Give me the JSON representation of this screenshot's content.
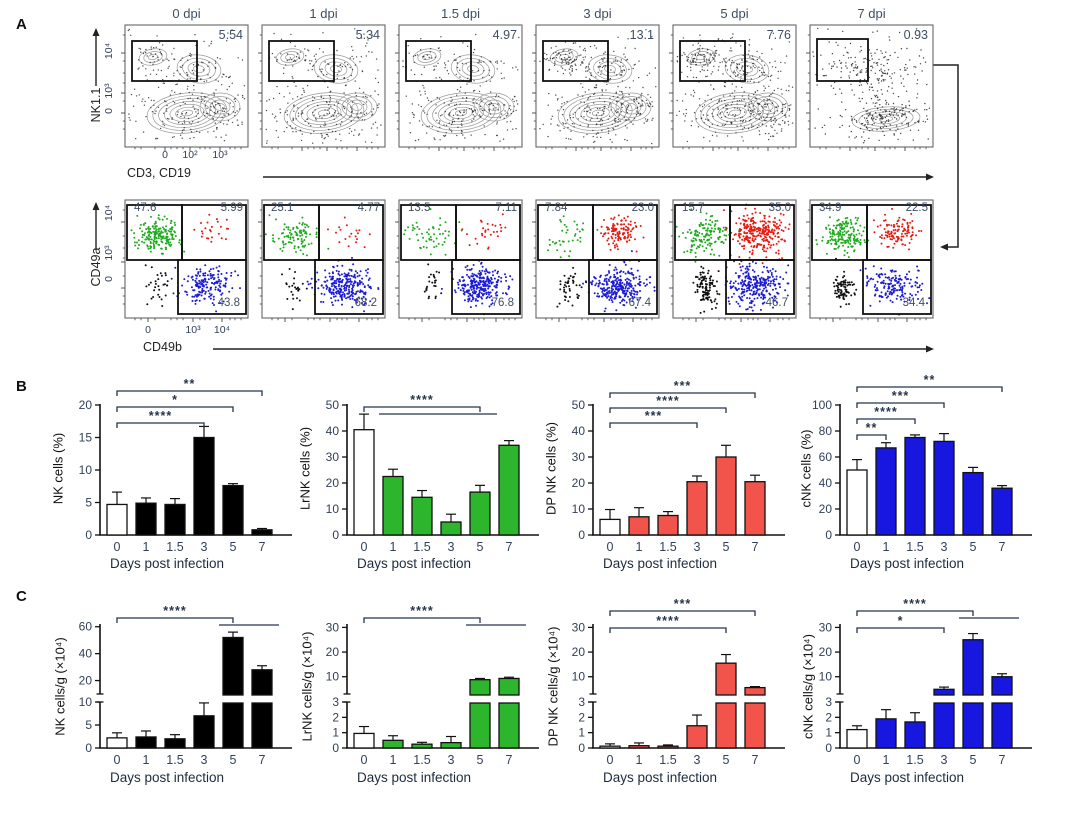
{
  "panel_labels": {
    "A": "A",
    "B": "B",
    "C": "C"
  },
  "colors": {
    "bar_black": "#000000",
    "bar_green": "#2db52d",
    "bar_red": "#f2544b",
    "bar_blue": "#1717e0",
    "open_bar": "#ffffff",
    "scatter_green": "#1faa1f",
    "scatter_red": "#e8190f",
    "scatter_blue": "#1b1bd6",
    "scatter_black": "#111111",
    "annotation": "#26344a",
    "tick_text": "#32405a",
    "flow_text": "#3d4e63"
  },
  "panels": {
    "A": {
      "timepoints": [
        "0 dpi",
        "1 dpi",
        "1.5 dpi",
        "3 dpi",
        "5 dpi",
        "7 dpi"
      ],
      "top_row": {
        "y_axis": "NK1.1",
        "y_ticks": [
          "10⁴",
          "10³",
          "0"
        ],
        "x_axis": "CD3, CD19",
        "x_ticks": [
          "0",
          "10²",
          "10³"
        ],
        "gate_percent": [
          "5.54",
          "5.34",
          "4.97",
          "13.1",
          "7.76",
          "0.93"
        ]
      },
      "bottom_row": {
        "y_axis": "CD49a",
        "y_ticks": [
          "10⁴",
          "10³",
          "0"
        ],
        "x_axis": "CD49b",
        "x_ticks": [
          "0",
          "10³",
          "10⁴"
        ],
        "quadrant_percent": [
          {
            "tl": "47.6",
            "tr": "5.99",
            "br": "43.8"
          },
          {
            "tl": "25.1",
            "tr": "4.77",
            "br": "68.2"
          },
          {
            "tl": "13.5",
            "tr": "7.11",
            "br": "76.8"
          },
          {
            "tl": "7.84",
            "tr": "23.0",
            "br": "67.4"
          },
          {
            "tl": "15.7",
            "tr": "35.0",
            "br": "46.7"
          },
          {
            "tl": "34.9",
            "tr": "22.5",
            "br": "34.4"
          }
        ]
      }
    },
    "B": {
      "xlabel": "Days post infection"
    },
    "C": {
      "xlabel": "Days post infection"
    }
  },
  "chart_data": [
    {
      "id": "B1",
      "panel": "B",
      "col": 0,
      "type": "bar",
      "ylabel": "NK cells (%)",
      "xlabel": "Days post infection",
      "categories": [
        "0",
        "1",
        "1.5",
        "3",
        "5",
        "7"
      ],
      "values": [
        4.7,
        4.9,
        4.7,
        15.0,
        7.6,
        0.8
      ],
      "errors": [
        1.9,
        0.8,
        0.9,
        1.7,
        0.3,
        0.2
      ],
      "ylim": [
        0,
        20
      ],
      "yticks": [
        0,
        5,
        10,
        15,
        20
      ],
      "bar_color": "#000000",
      "first_bar_open": true,
      "significance": [
        {
          "label": "****",
          "a": 0,
          "b": 3
        },
        {
          "label": "*",
          "a": 0,
          "b": 4
        },
        {
          "label": "**",
          "a": 0,
          "b": 5
        }
      ]
    },
    {
      "id": "B2",
      "panel": "B",
      "col": 1,
      "type": "bar",
      "ylabel": "LrNK cells (%)",
      "xlabel": "Days post infection",
      "categories": [
        "0",
        "1",
        "1.5",
        "3",
        "5",
        "7"
      ],
      "values": [
        40.5,
        22.5,
        14.5,
        5.0,
        16.5,
        34.5
      ],
      "errors": [
        6.0,
        2.8,
        2.6,
        3.0,
        2.6,
        1.8
      ],
      "ylim": [
        0,
        50
      ],
      "yticks": [
        0,
        10,
        20,
        30,
        40,
        50
      ],
      "bar_color": "#2db52d",
      "first_bar_open": true,
      "significance": [
        {
          "label": "****",
          "a": 0,
          "b": 4,
          "sub": [
            1,
            4
          ]
        }
      ]
    },
    {
      "id": "B3",
      "panel": "B",
      "col": 2,
      "type": "bar",
      "ylabel": "DP NK cells (%)",
      "xlabel": "Days post infection",
      "categories": [
        "0",
        "1",
        "1.5",
        "3",
        "5",
        "7"
      ],
      "values": [
        6.0,
        7.0,
        7.5,
        20.5,
        30.0,
        20.5
      ],
      "errors": [
        3.8,
        3.5,
        1.5,
        2.2,
        4.5,
        2.5
      ],
      "ylim": [
        0,
        50
      ],
      "yticks": [
        0,
        10,
        20,
        30,
        40,
        50
      ],
      "bar_color": "#f2544b",
      "first_bar_open": true,
      "significance": [
        {
          "label": "***",
          "a": 0,
          "b": 3
        },
        {
          "label": "****",
          "a": 0,
          "b": 4
        },
        {
          "label": "***",
          "a": 0,
          "b": 5
        }
      ]
    },
    {
      "id": "B4",
      "panel": "B",
      "col": 3,
      "type": "bar",
      "ylabel": "cNK cells (%)",
      "xlabel": "Days post infection",
      "categories": [
        "0",
        "1",
        "1.5",
        "3",
        "5",
        "7"
      ],
      "values": [
        50,
        67,
        75,
        72,
        48,
        36
      ],
      "errors": [
        8,
        4,
        2,
        6,
        4,
        2
      ],
      "ylim": [
        0,
        100
      ],
      "yticks": [
        0,
        20,
        40,
        60,
        80,
        100
      ],
      "bar_color": "#1717e0",
      "first_bar_open": true,
      "significance": [
        {
          "label": "**",
          "a": 0,
          "b": 1
        },
        {
          "label": "****",
          "a": 0,
          "b": 2
        },
        {
          "label": "***",
          "a": 0,
          "b": 3
        },
        {
          "label": "**",
          "a": 0,
          "b": 5
        }
      ]
    },
    {
      "id": "C1",
      "panel": "C",
      "col": 0,
      "type": "bar",
      "ylabel": "NK cells/g (×10⁴)",
      "xlabel": "Days post infection",
      "categories": [
        "0",
        "1",
        "1.5",
        "3",
        "5",
        "7"
      ],
      "values": [
        2.2,
        2.4,
        2.0,
        7.0,
        52,
        28
      ],
      "errors": [
        1.1,
        1.3,
        0.9,
        2.8,
        4,
        3
      ],
      "broken_axis": {
        "lower": [
          0,
          10
        ],
        "lower_ticks": [
          0,
          5,
          10
        ],
        "upper": [
          10,
          65
        ],
        "upper_ticks": [
          20,
          40,
          60
        ]
      },
      "bar_color": "#000000",
      "first_bar_open": true,
      "significance": [
        {
          "label": "****",
          "a": 0,
          "b": 4,
          "sub": [
            4,
            5
          ]
        }
      ]
    },
    {
      "id": "C2",
      "panel": "C",
      "col": 1,
      "type": "bar",
      "ylabel": "LrNK cells/g (×10⁴)",
      "xlabel": "Days post infection",
      "categories": [
        "0",
        "1",
        "1.5",
        "3",
        "5",
        "7"
      ],
      "values": [
        0.95,
        0.5,
        0.25,
        0.35,
        8.8,
        9.3
      ],
      "errors": [
        0.45,
        0.3,
        0.12,
        0.4,
        0.5,
        0.5
      ],
      "broken_axis": {
        "lower": [
          0,
          3
        ],
        "lower_ticks": [
          0,
          1,
          2,
          3
        ],
        "upper": [
          3,
          33
        ],
        "upper_ticks": [
          10,
          20,
          30
        ]
      },
      "bar_color": "#2db52d",
      "first_bar_open": true,
      "significance": [
        {
          "label": "****",
          "a": 0,
          "b": 4,
          "sub": [
            4,
            5
          ]
        }
      ]
    },
    {
      "id": "C3",
      "panel": "C",
      "col": 2,
      "type": "bar",
      "ylabel": "DP NK cells/g (×10⁴)",
      "xlabel": "Days post infection",
      "categories": [
        "0",
        "1",
        "1.5",
        "3",
        "5",
        "7"
      ],
      "values": [
        0.12,
        0.15,
        0.12,
        1.45,
        15.5,
        5.6
      ],
      "errors": [
        0.15,
        0.18,
        0.08,
        0.7,
        3.5,
        0.4
      ],
      "broken_axis": {
        "lower": [
          0,
          3
        ],
        "lower_ticks": [
          0,
          1,
          2,
          3
        ],
        "upper": [
          3,
          33
        ],
        "upper_ticks": [
          10,
          20,
          30
        ]
      },
      "bar_color": "#f2544b",
      "first_bar_open": true,
      "significance": [
        {
          "label": "****",
          "a": 0,
          "b": 4
        },
        {
          "label": "***",
          "a": 0,
          "b": 5
        }
      ]
    },
    {
      "id": "C4",
      "panel": "C",
      "col": 3,
      "type": "bar",
      "ylabel": "cNK cells/g (×10⁴)",
      "xlabel": "Days post infection",
      "categories": [
        "0",
        "1",
        "1.5",
        "3",
        "5",
        "7"
      ],
      "values": [
        1.2,
        1.9,
        1.7,
        4.9,
        25,
        10
      ],
      "errors": [
        0.25,
        0.6,
        0.6,
        0.9,
        2.5,
        1.2
      ],
      "broken_axis": {
        "lower": [
          0,
          3
        ],
        "lower_ticks": [
          0,
          1,
          2,
          3
        ],
        "upper": [
          3,
          33
        ],
        "upper_ticks": [
          10,
          20,
          30
        ]
      },
      "bar_color": "#1717e0",
      "first_bar_open": true,
      "significance": [
        {
          "label": "*",
          "a": 0,
          "b": 3
        },
        {
          "label": "****",
          "a": 0,
          "b": 4,
          "sub": [
            4,
            5
          ]
        }
      ]
    }
  ]
}
